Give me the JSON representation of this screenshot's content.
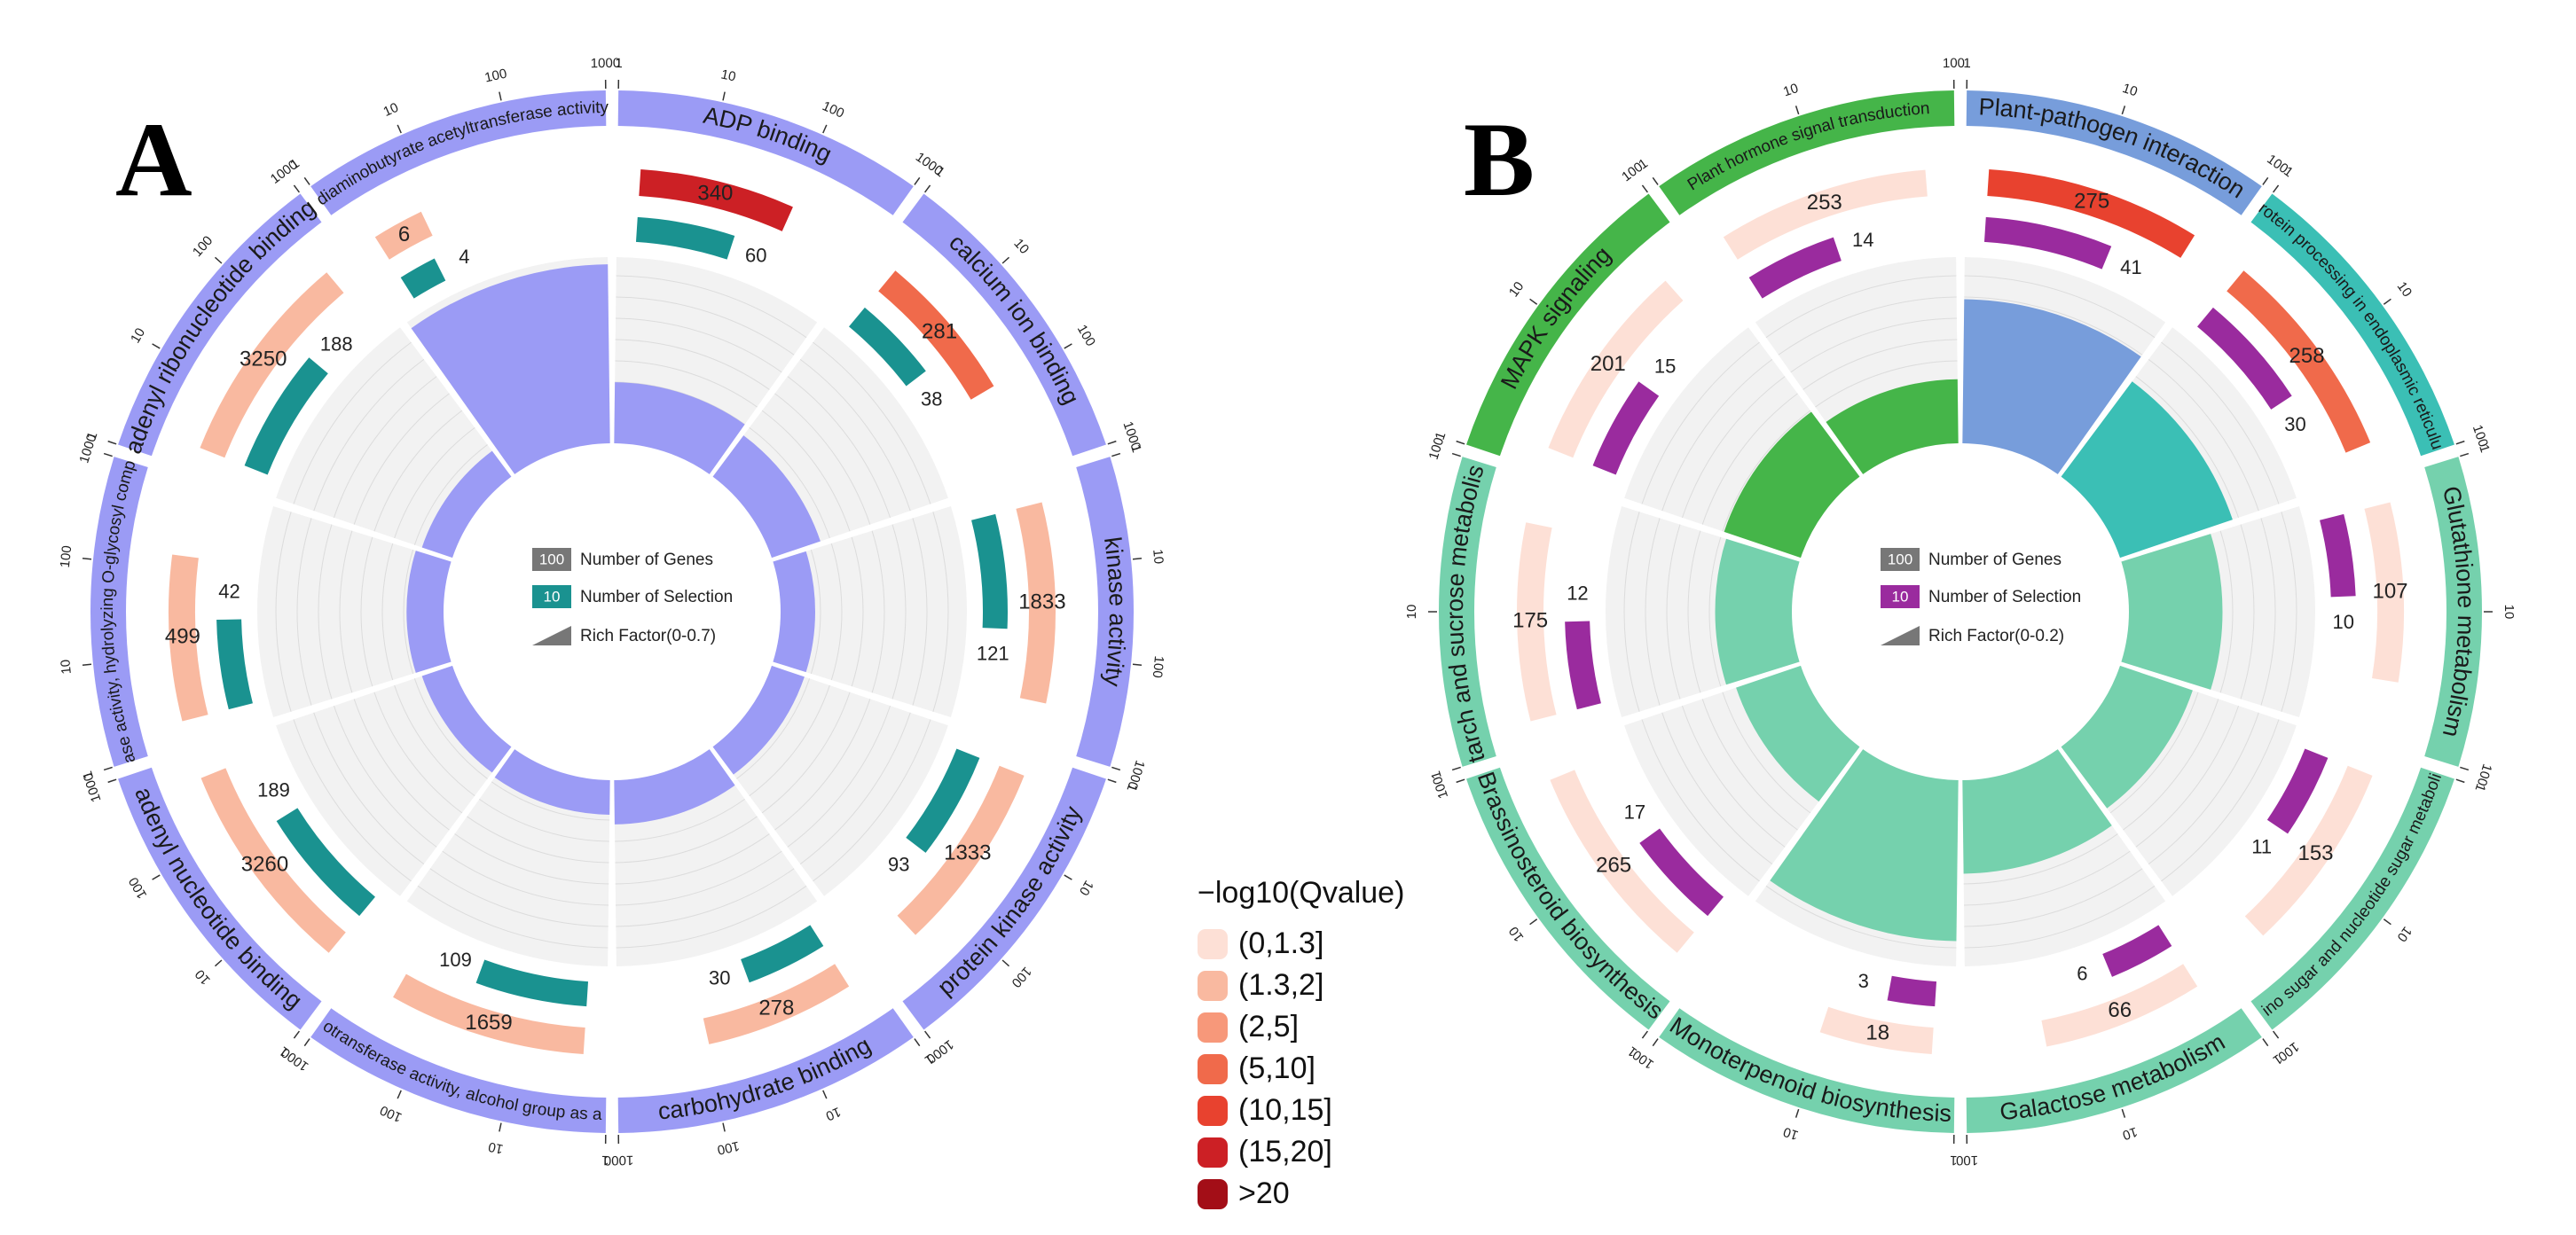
{
  "panels": [
    {
      "letter": "A",
      "color": "#9b9bf5",
      "count_color": "#1a9290",
      "legend": {
        "genes_box": "100",
        "genes_text": "Number of Genes",
        "sel_box": "10",
        "sel_text": "Number of Selection",
        "rich_text": "Rich Factor(0-0.7)"
      },
      "scale_labels": [
        "1",
        "10",
        "100",
        "1000"
      ],
      "rich_max": 0.7,
      "terms": [
        {
          "name": "ADP binding",
          "genes": 340,
          "selected": 60,
          "q_class": "(15,20]",
          "rich": 0.18
        },
        {
          "name": "calcium ion binding",
          "genes": 281,
          "selected": 38,
          "q_class": "(5,10]",
          "rich": 0.14
        },
        {
          "name": "kinase activity",
          "genes": 1833,
          "selected": 121,
          "q_class": "(1.3,2]",
          "rich": 0.07
        },
        {
          "name": "protein kinase activity",
          "genes": 1333,
          "selected": 93,
          "q_class": "(1.3,2]",
          "rich": 0.07
        },
        {
          "name": "carbohydrate binding",
          "genes": 278,
          "selected": 30,
          "q_class": "(1.3,2]",
          "rich": 0.11
        },
        {
          "name": "phosphotransferase activity, alcohol group as acceptor",
          "genes": 1659,
          "selected": 109,
          "q_class": "(1.3,2]",
          "rich": 0.07
        },
        {
          "name": "adenyl nucleotide binding",
          "genes": 3260,
          "selected": 189,
          "q_class": "(1.3,2]",
          "rich": 0.06
        },
        {
          "name": "hydrolase activity, hydrolyzing O-glycosyl compounds",
          "genes": 499,
          "selected": 42,
          "q_class": "(1.3,2]",
          "rich": 0.08
        },
        {
          "name": "adenyl ribonucleotide binding",
          "genes": 3250,
          "selected": 188,
          "q_class": "(1.3,2]",
          "rich": 0.06
        },
        {
          "name": "diaminobutyrate acetyltransferase activity",
          "genes": 6,
          "selected": 4,
          "q_class": "(1.3,2]",
          "rich": 0.67
        }
      ]
    },
    {
      "letter": "B",
      "count_color": "#9a2b9e",
      "legend": {
        "genes_box": "100",
        "genes_text": "Number of Genes",
        "sel_box": "10",
        "sel_text": "Number of Selection",
        "rich_text": "Rich Factor(0-0.2)"
      },
      "scale_labels": [
        "1",
        "10",
        "100"
      ],
      "rich_max": 0.2,
      "terms": [
        {
          "name": "Plant-pathogen interaction",
          "genes": 275,
          "selected": 41,
          "q_class": "(10,15]",
          "rich": 0.15,
          "color": "#779ddb"
        },
        {
          "name": "Protein processing in endoplasmic reticulum",
          "genes": 258,
          "selected": 30,
          "q_class": "(5,10]",
          "rich": 0.12,
          "color": "#3bbfb5"
        },
        {
          "name": "Glutathione metabolism",
          "genes": 107,
          "selected": 10,
          "q_class": "(0,1.3]",
          "rich": 0.09,
          "color": "#75d1ad"
        },
        {
          "name": "Amino sugar and nucleotide sugar metabolism",
          "genes": 153,
          "selected": 11,
          "q_class": "(0,1.3]",
          "rich": 0.07,
          "color": "#75d1ad"
        },
        {
          "name": "Galactose metabolism",
          "genes": 66,
          "selected": 6,
          "q_class": "(0,1.3]",
          "rich": 0.09,
          "color": "#75d1ad"
        },
        {
          "name": "Monoterpenoid biosynthesis",
          "genes": 18,
          "selected": 3,
          "q_class": "(0,1.3]",
          "rich": 0.17,
          "color": "#75d1ad"
        },
        {
          "name": "Brassinosteroid biosynthesis",
          "genes": 265,
          "selected": 17,
          "q_class": "(0,1.3]",
          "rich": 0.06,
          "color": "#75d1ad"
        },
        {
          "name": "Starch and sucrose metabolism",
          "genes": 175,
          "selected": 12,
          "q_class": "(0,1.3]",
          "rich": 0.07,
          "color": "#75d1ad"
        },
        {
          "name": "MAPK signaling",
          "genes": 201,
          "selected": 15,
          "q_class": "(0,1.3]",
          "rich": 0.075,
          "color": "#45b549"
        },
        {
          "name": "Plant hormone signal transduction",
          "genes": 253,
          "selected": 14,
          "q_class": "(0,1.3]",
          "rich": 0.055,
          "color": "#45b549"
        }
      ]
    }
  ],
  "qvalue_legend": {
    "title": "−log10(Qvalue)",
    "items": [
      {
        "label": "(0,1.3]",
        "color": "#fde0d6"
      },
      {
        "label": "(1.3,2]",
        "color": "#f9b9a0"
      },
      {
        "label": "(2,5]",
        "color": "#f7987a"
      },
      {
        "label": "(5,10]",
        "color": "#f06a4b"
      },
      {
        "label": "(10,15]",
        "color": "#e8422f"
      },
      {
        "label": "(15,20]",
        "color": "#cc2025"
      },
      {
        "label": ">20",
        "color": "#a30e17"
      }
    ]
  },
  "chart_data": [
    {
      "type": "circos-enrichment",
      "panel": "A",
      "categories": [
        "ADP binding",
        "calcium ion binding",
        "kinase activity",
        "protein kinase activity",
        "carbohydrate binding",
        "phosphotransferase activity, alcohol group as acceptor",
        "adenyl nucleotide binding",
        "hydrolase activity, hydrolyzing O-glycosyl compounds",
        "adenyl ribonucleotide binding",
        "diaminobutyrate acetyltransferase activity"
      ],
      "series": [
        {
          "name": "Number of Genes",
          "values": [
            340,
            281,
            1833,
            1333,
            278,
            1659,
            3260,
            499,
            3250,
            6
          ]
        },
        {
          "name": "Number of Selection",
          "values": [
            60,
            38,
            121,
            93,
            30,
            109,
            189,
            42,
            188,
            4
          ]
        }
      ],
      "rich_factor_range": [
        0,
        0.7
      ]
    },
    {
      "type": "circos-enrichment",
      "panel": "B",
      "categories": [
        "Plant-pathogen interaction",
        "Protein processing in endoplasmic reticulum",
        "Glutathione metabolism",
        "Amino sugar and nucleotide sugar metabolism",
        "Galactose metabolism",
        "Monoterpenoid biosynthesis",
        "Brassinosteroid biosynthesis",
        "Starch and sucrose metabolism",
        "MAPK signaling",
        "Plant hormone signal transduction"
      ],
      "series": [
        {
          "name": "Number of Genes",
          "values": [
            275,
            258,
            107,
            153,
            66,
            18,
            265,
            175,
            201,
            253
          ]
        },
        {
          "name": "Number of Selection",
          "values": [
            41,
            30,
            10,
            11,
            6,
            3,
            17,
            12,
            15,
            14
          ]
        }
      ],
      "rich_factor_range": [
        0,
        0.2
      ]
    }
  ]
}
